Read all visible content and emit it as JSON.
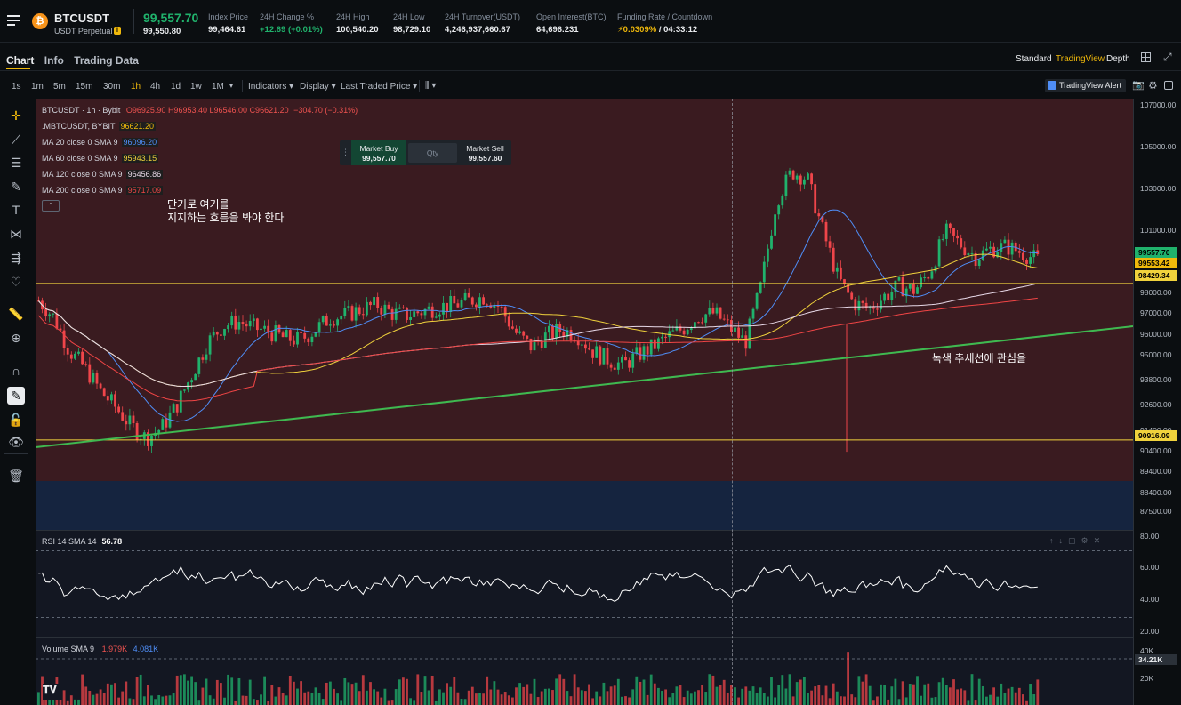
{
  "header": {
    "symbol": "BTCUSDT",
    "contract": "USDT Perpetual",
    "last_price": "99,557.70",
    "mark_price": "99,550.80",
    "stats": [
      {
        "label": "Index Price",
        "value": "99,464.61",
        "color": "#eaecef"
      },
      {
        "label": "24H Change %",
        "value": "+12.69 (+0.01%)",
        "color": "#20b26c"
      },
      {
        "label": "24H High",
        "value": "100,540.20",
        "color": "#eaecef"
      },
      {
        "label": "24H Low",
        "value": "98,729.10",
        "color": "#eaecef"
      },
      {
        "label": "24H Turnover(USDT)",
        "value": "4,246,937,660.67",
        "color": "#eaecef"
      },
      {
        "label": "Open Interest(BTC)",
        "value": "64,696.231",
        "color": "#eaecef"
      }
    ],
    "funding": {
      "label": "Funding Rate / Countdown",
      "rate": "0.0309%",
      "countdown": "/ 04:33:12"
    }
  },
  "tabs": {
    "chart": "Chart",
    "info": "Info",
    "trading_data": "Trading Data"
  },
  "views": {
    "standard": "Standard",
    "tradingview": "TradingView",
    "depth": "Depth"
  },
  "toolbar": {
    "intervals": [
      "1s",
      "1m",
      "5m",
      "15m",
      "30m",
      "1h",
      "4h",
      "1d",
      "1w",
      "1M"
    ],
    "active_interval": "1h",
    "indicators": "Indicators",
    "display": "Display",
    "last_traded": "Last Traded Price",
    "alert": "TradingView Alert"
  },
  "legend": {
    "title": "BTCUSDT · 1h · Bybit",
    "o": "O96925.90",
    "h": "H96953.40",
    "l": "L96546.00",
    "c": "C96621.20",
    "chg": "−304.70 (−0.31%)",
    "mark_label": ".MBTCUSDT, BYBIT",
    "mark_value": "96621.20",
    "ma": [
      {
        "label": "MA 20 close 0 SMA 9",
        "value": "96096.20",
        "color": "#4f8ef7"
      },
      {
        "label": "MA 60 close 0 SMA 9",
        "value": "95943.15",
        "color": "#f0d23c"
      },
      {
        "label": "MA 120 close 0 SMA 9",
        "value": "96456.86",
        "color": "#e8d9e8"
      },
      {
        "label": "MA 200 close 0 SMA 9",
        "value": "95717.09",
        "color": "#ef4545"
      }
    ]
  },
  "order": {
    "buy_label": "Market Buy",
    "buy_price": "99,557.70",
    "qty": "Qty",
    "sell_label": "Market Sell",
    "sell_price": "99,557.60"
  },
  "annotations": {
    "note1_line1": "단기로 여기를",
    "note1_line2": "지지하는 흐름을 봐야 한다",
    "note2": "녹색 추세선에 관심을"
  },
  "price_axis": {
    "ticks": [
      "107000.00",
      "105000.00",
      "103000.00",
      "101000.00",
      "100000.00",
      "98000.00",
      "97000.00",
      "96000.00",
      "95000.00",
      "93800.00",
      "92600.00",
      "91400.00",
      "90400.00",
      "89400.00",
      "88400.00",
      "87500.00"
    ],
    "labels": [
      {
        "text": "99557.70",
        "bg": "#20b26c"
      },
      {
        "text": "99553.42",
        "bg": "#f0b90b"
      },
      {
        "text": "98429.34",
        "bg": "#f0d23c"
      },
      {
        "text": "90916.09",
        "bg": "#f0d23c"
      }
    ]
  },
  "rsi": {
    "label": "RSI 14 SMA 14",
    "value": "56.78",
    "ticks": [
      "80.00",
      "60.00",
      "40.00",
      "20.00"
    ]
  },
  "volume": {
    "label": "Volume SMA 9",
    "v1": "1.979K",
    "v2": "4.081K",
    "ticks": [
      "40K",
      "20K"
    ],
    "last": "34.21K"
  },
  "chart_data": {
    "type": "candlestick",
    "symbol": "BTCUSDT",
    "interval": "1h",
    "close_path": [
      97600,
      96800,
      95200,
      94400,
      93300,
      92500,
      91600,
      91000,
      91500,
      92600,
      94100,
      95600,
      96400,
      96600,
      96300,
      96100,
      95800,
      95700,
      96200,
      96800,
      96900,
      97200,
      97400,
      97000,
      96900,
      97100,
      97300,
      97400,
      97600,
      97800,
      97300,
      96100,
      95400,
      95900,
      96200,
      96000,
      95200,
      94800,
      94500,
      95000,
      95400,
      95900,
      96300,
      96900,
      97000,
      96300,
      95600,
      98300,
      102400,
      103800,
      103500,
      101000,
      98700,
      97500,
      97200,
      97800,
      98300,
      98100,
      99000,
      100900,
      100300,
      99700,
      100100,
      100200,
      99900,
      99550
    ],
    "support_levels": [
      98429.34,
      90916.09
    ],
    "trendline": "ascending green",
    "rsi_last": 56.78
  }
}
